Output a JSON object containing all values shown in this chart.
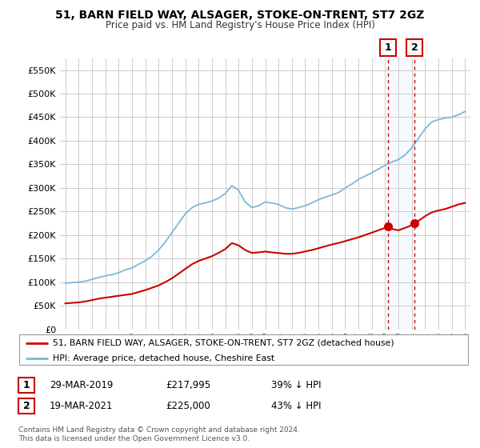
{
  "title": "51, BARN FIELD WAY, ALSAGER, STOKE-ON-TRENT, ST7 2GZ",
  "subtitle": "Price paid vs. HM Land Registry's House Price Index (HPI)",
  "ylim": [
    0,
    575000
  ],
  "yticks": [
    0,
    50000,
    100000,
    150000,
    200000,
    250000,
    300000,
    350000,
    400000,
    450000,
    500000,
    550000
  ],
  "ytick_labels": [
    "£0",
    "£50K",
    "£100K",
    "£150K",
    "£200K",
    "£250K",
    "£300K",
    "£350K",
    "£400K",
    "£450K",
    "£500K",
    "£550K"
  ],
  "xlim_start": 1994.6,
  "xlim_end": 2025.4,
  "xtick_years": [
    1995,
    1996,
    1997,
    1998,
    1999,
    2000,
    2001,
    2002,
    2003,
    2004,
    2005,
    2006,
    2007,
    2008,
    2009,
    2010,
    2011,
    2012,
    2013,
    2014,
    2015,
    2016,
    2017,
    2018,
    2019,
    2020,
    2021,
    2022,
    2023,
    2024,
    2025
  ],
  "hpi_color": "#7ab8d9",
  "price_color": "#cc0000",
  "transaction1_x": 2019.24,
  "transaction1_y": 217995,
  "transaction2_x": 2021.22,
  "transaction2_y": 225000,
  "shade_color": "#ddeeff",
  "vline_color": "#cc0000",
  "legend_line1": "51, BARN FIELD WAY, ALSAGER, STOKE-ON-TRENT, ST7 2GZ (detached house)",
  "legend_line2": "HPI: Average price, detached house, Cheshire East",
  "table_rows": [
    [
      "1",
      "29-MAR-2019",
      "£217,995",
      "39% ↓ HPI"
    ],
    [
      "2",
      "19-MAR-2021",
      "£225,000",
      "43% ↓ HPI"
    ]
  ],
  "footer": "Contains HM Land Registry data © Crown copyright and database right 2024.\nThis data is licensed under the Open Government Licence v3.0.",
  "background_color": "#ffffff",
  "grid_color": "#cccccc",
  "hpi_knots": [
    [
      1995.0,
      98000
    ],
    [
      1995.5,
      99000
    ],
    [
      1996.0,
      100000
    ],
    [
      1996.5,
      102000
    ],
    [
      1997.0,
      106000
    ],
    [
      1997.5,
      110000
    ],
    [
      1998.0,
      113000
    ],
    [
      1998.5,
      116000
    ],
    [
      1999.0,
      120000
    ],
    [
      1999.5,
      126000
    ],
    [
      2000.0,
      130000
    ],
    [
      2000.5,
      138000
    ],
    [
      2001.0,
      145000
    ],
    [
      2001.5,
      155000
    ],
    [
      2002.0,
      168000
    ],
    [
      2002.5,
      185000
    ],
    [
      2003.0,
      205000
    ],
    [
      2003.5,
      225000
    ],
    [
      2004.0,
      245000
    ],
    [
      2004.5,
      258000
    ],
    [
      2005.0,
      265000
    ],
    [
      2005.5,
      268000
    ],
    [
      2006.0,
      272000
    ],
    [
      2006.5,
      278000
    ],
    [
      2007.0,
      288000
    ],
    [
      2007.5,
      305000
    ],
    [
      2008.0,
      295000
    ],
    [
      2008.5,
      270000
    ],
    [
      2009.0,
      258000
    ],
    [
      2009.5,
      262000
    ],
    [
      2010.0,
      270000
    ],
    [
      2010.5,
      268000
    ],
    [
      2011.0,
      265000
    ],
    [
      2011.5,
      258000
    ],
    [
      2012.0,
      255000
    ],
    [
      2012.5,
      258000
    ],
    [
      2013.0,
      262000
    ],
    [
      2013.5,
      268000
    ],
    [
      2014.0,
      275000
    ],
    [
      2014.5,
      280000
    ],
    [
      2015.0,
      285000
    ],
    [
      2015.5,
      290000
    ],
    [
      2016.0,
      300000
    ],
    [
      2016.5,
      308000
    ],
    [
      2017.0,
      318000
    ],
    [
      2017.5,
      325000
    ],
    [
      2018.0,
      332000
    ],
    [
      2018.5,
      340000
    ],
    [
      2019.0,
      348000
    ],
    [
      2019.5,
      355000
    ],
    [
      2020.0,
      360000
    ],
    [
      2020.5,
      370000
    ],
    [
      2021.0,
      385000
    ],
    [
      2021.5,
      405000
    ],
    [
      2022.0,
      425000
    ],
    [
      2022.5,
      440000
    ],
    [
      2023.0,
      445000
    ],
    [
      2023.5,
      448000
    ],
    [
      2024.0,
      450000
    ],
    [
      2024.5,
      455000
    ],
    [
      2025.0,
      462000
    ]
  ],
  "price_knots": [
    [
      1995.0,
      55000
    ],
    [
      1995.5,
      56000
    ],
    [
      1996.0,
      57000
    ],
    [
      1996.5,
      59000
    ],
    [
      1997.0,
      62000
    ],
    [
      1997.5,
      65000
    ],
    [
      1998.0,
      67000
    ],
    [
      1998.5,
      69000
    ],
    [
      1999.0,
      71000
    ],
    [
      1999.5,
      73000
    ],
    [
      2000.0,
      75000
    ],
    [
      2000.5,
      79000
    ],
    [
      2001.0,
      83000
    ],
    [
      2001.5,
      88000
    ],
    [
      2002.0,
      93000
    ],
    [
      2002.5,
      100000
    ],
    [
      2003.0,
      108000
    ],
    [
      2003.5,
      118000
    ],
    [
      2004.0,
      128000
    ],
    [
      2004.5,
      138000
    ],
    [
      2005.0,
      145000
    ],
    [
      2005.5,
      150000
    ],
    [
      2006.0,
      155000
    ],
    [
      2006.5,
      162000
    ],
    [
      2007.0,
      170000
    ],
    [
      2007.5,
      183000
    ],
    [
      2008.0,
      178000
    ],
    [
      2008.5,
      168000
    ],
    [
      2009.0,
      162000
    ],
    [
      2009.5,
      163000
    ],
    [
      2010.0,
      165000
    ],
    [
      2010.5,
      163000
    ],
    [
      2011.0,
      162000
    ],
    [
      2011.5,
      160000
    ],
    [
      2012.0,
      160000
    ],
    [
      2012.5,
      162000
    ],
    [
      2013.0,
      165000
    ],
    [
      2013.5,
      168000
    ],
    [
      2014.0,
      172000
    ],
    [
      2014.5,
      176000
    ],
    [
      2015.0,
      180000
    ],
    [
      2015.5,
      183000
    ],
    [
      2016.0,
      187000
    ],
    [
      2016.5,
      191000
    ],
    [
      2017.0,
      195000
    ],
    [
      2017.5,
      200000
    ],
    [
      2018.0,
      205000
    ],
    [
      2018.5,
      210000
    ],
    [
      2019.0,
      215000
    ],
    [
      2019.24,
      217995
    ],
    [
      2019.5,
      213000
    ],
    [
      2020.0,
      210000
    ],
    [
      2020.5,
      215000
    ],
    [
      2021.0,
      221000
    ],
    [
      2021.22,
      225000
    ],
    [
      2021.5,
      230000
    ],
    [
      2022.0,
      240000
    ],
    [
      2022.5,
      248000
    ],
    [
      2023.0,
      252000
    ],
    [
      2023.5,
      255000
    ],
    [
      2024.0,
      260000
    ],
    [
      2024.5,
      265000
    ],
    [
      2025.0,
      268000
    ]
  ]
}
